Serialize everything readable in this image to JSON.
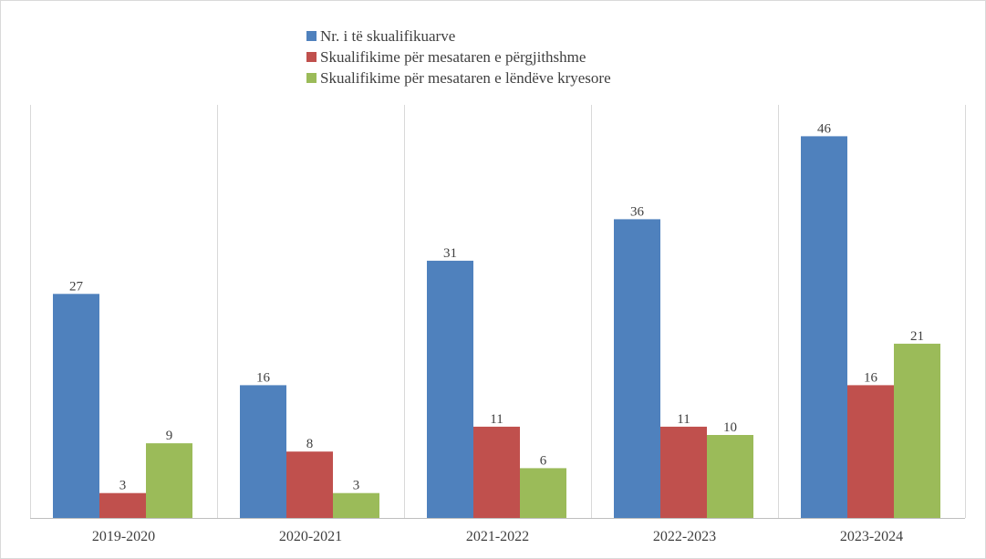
{
  "chart_data": {
    "type": "bar",
    "categories": [
      "2019-2020",
      "2020-2021",
      "2021-2022",
      "2022-2023",
      "2023-2024"
    ],
    "series": [
      {
        "name": "Nr. i të skualifikuarve",
        "color": "#4f81bd",
        "values": [
          27,
          16,
          31,
          36,
          46
        ]
      },
      {
        "name": "Skualifikime për mesataren e përgjithshme",
        "color": "#c0504d",
        "values": [
          3,
          8,
          11,
          11,
          16
        ]
      },
      {
        "name": "Skualifikime për mesataren e lëndëve kryesore",
        "color": "#9bbb59",
        "values": [
          9,
          3,
          6,
          10,
          21
        ]
      }
    ],
    "ylim": [
      0,
      50
    ],
    "data_labels": true,
    "grid": "vertical category separators",
    "legend": "top-center"
  }
}
